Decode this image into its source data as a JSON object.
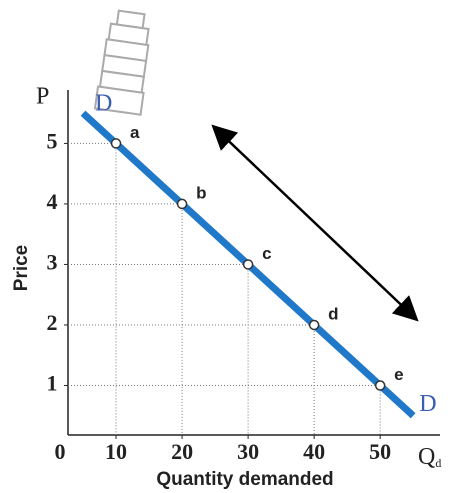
{
  "chart_data": {
    "type": "line",
    "y_axis_symbol": "P",
    "x_axis_symbol": "Q",
    "x_axis_subscript": "d",
    "x_label": "Quantity demanded",
    "y_label": "Price",
    "origin_label": "0",
    "curve_label": "D",
    "curve": {
      "x": [
        5,
        55
      ],
      "y": [
        5.5,
        0.5
      ]
    },
    "points": {
      "labels": [
        "a",
        "b",
        "c",
        "d",
        "e"
      ],
      "x": [
        10,
        20,
        30,
        40,
        50
      ],
      "y": [
        5,
        4,
        3,
        2,
        1
      ]
    },
    "xlim": [
      0,
      58
    ],
    "ylim": [
      0,
      5.8
    ],
    "xticks": [
      10,
      20,
      30,
      40,
      50
    ],
    "yticks": [
      1,
      2,
      3,
      4,
      5
    ],
    "color": "#1f78c8"
  }
}
